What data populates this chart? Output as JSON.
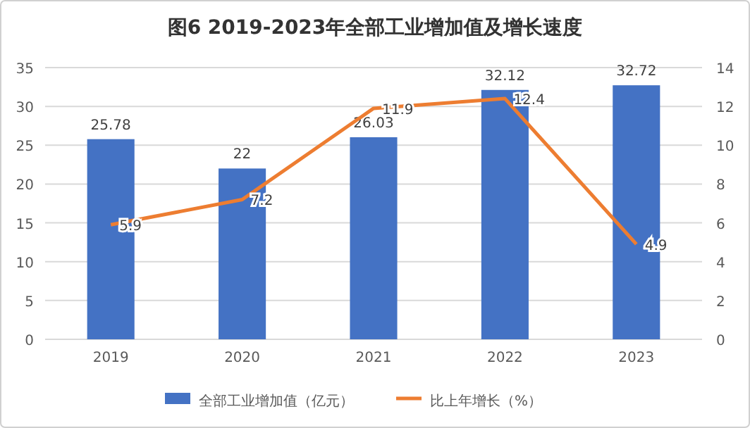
{
  "chart_data": {
    "type": "bar",
    "title": "图6 2019-2023年全部工业增加值及增长速度",
    "categories": [
      "2019",
      "2020",
      "2021",
      "2022",
      "2023"
    ],
    "series": [
      {
        "name": "全部工业增加值（亿元）",
        "color": "#4472c4",
        "values": [
          25.78,
          22,
          26.03,
          32.12,
          32.72
        ]
      },
      {
        "name": "比上年增长（%）",
        "type": "line",
        "axis": "y2",
        "color": "#ed7d31",
        "values": [
          5.9,
          7.2,
          11.9,
          12.4,
          4.9
        ]
      }
    ],
    "ylim": [
      0,
      35
    ],
    "yticks": [
      0,
      5,
      10,
      15,
      20,
      25,
      30,
      35
    ],
    "y2lim": [
      0,
      14
    ],
    "y2ticks": [
      0,
      2,
      4,
      6,
      8,
      10,
      12,
      14
    ],
    "grid": "y",
    "legend": "bottom",
    "data_labels": true,
    "marker": "none"
  }
}
